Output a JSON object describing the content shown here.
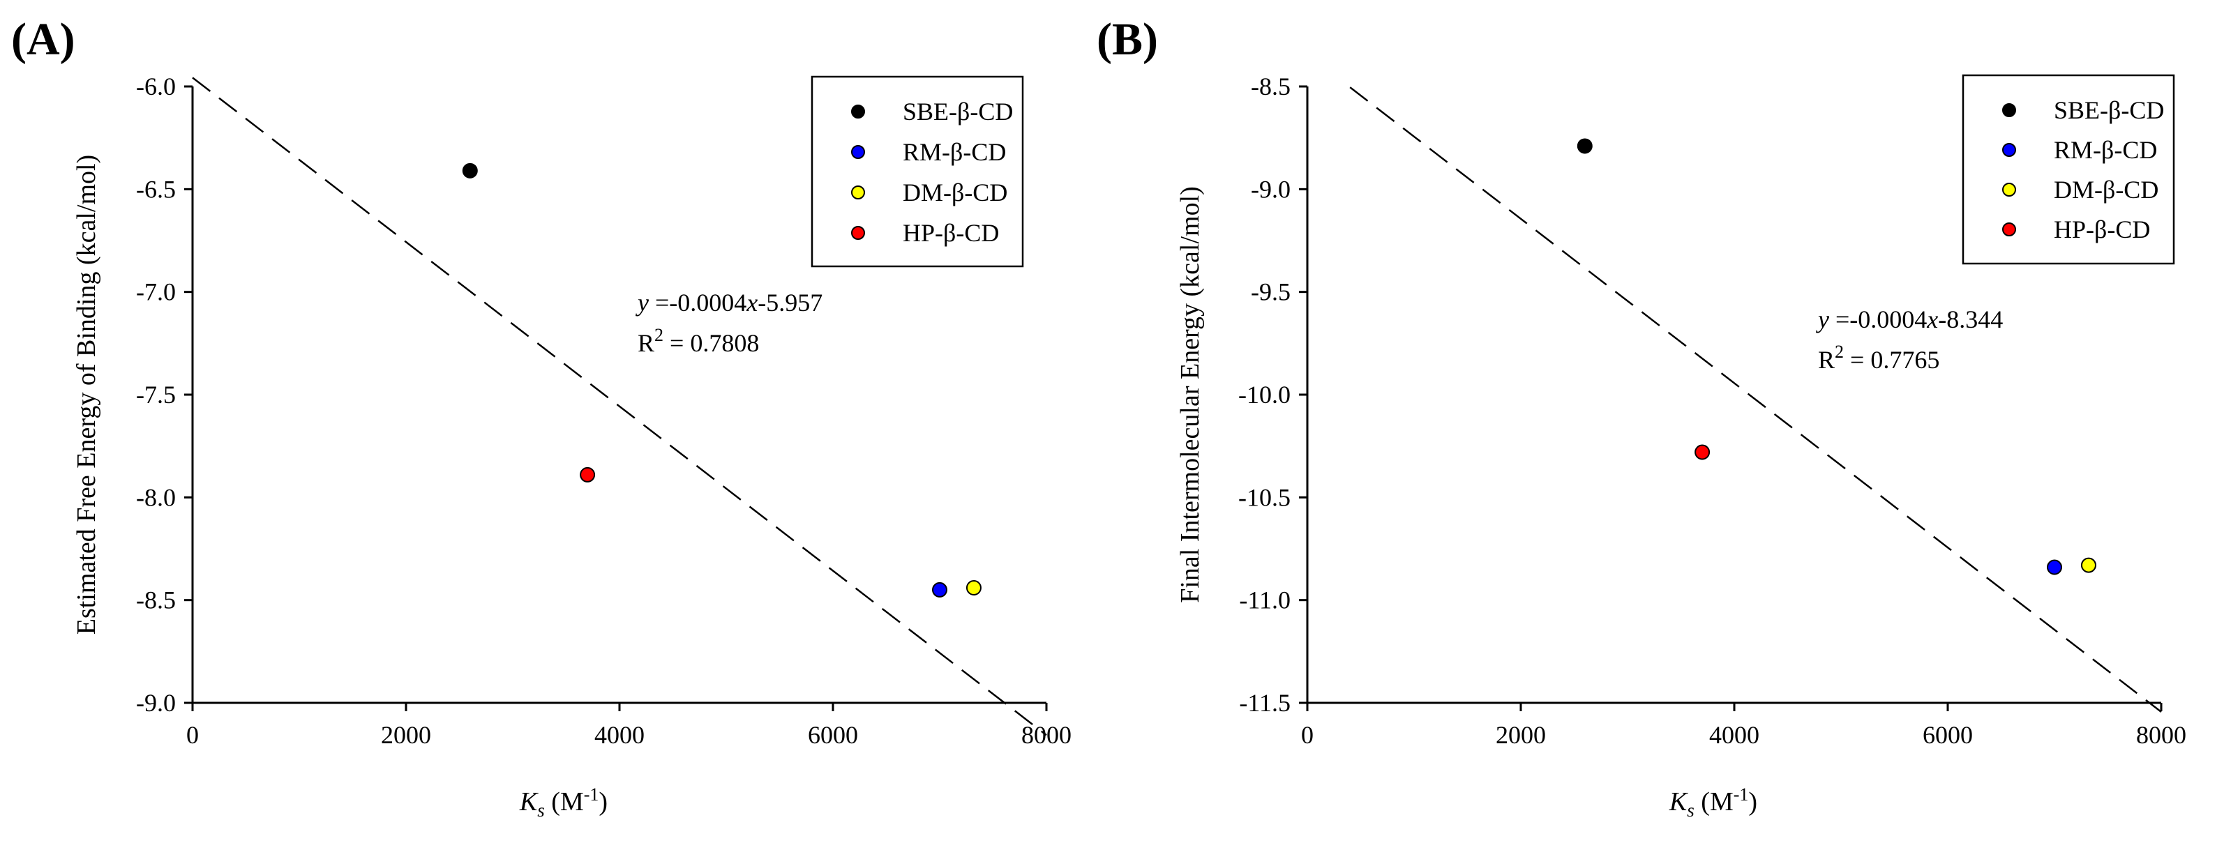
{
  "chart_data": [
    {
      "panel_label": "(A)",
      "type": "scatter",
      "xlabel": {
        "main": "K",
        "sub": "s",
        "unit_pre": " (M",
        "unit_sup": "-1",
        "unit_post": ")"
      },
      "ylabel": "Estimated Free Energy of Binding (kcal/mol)",
      "xlim": [
        0,
        8000
      ],
      "ylim": [
        -9.0,
        -6.0
      ],
      "xticks": [
        "0",
        "2000",
        "4000",
        "6000",
        "8000"
      ],
      "yticks": [
        "-6.0",
        "-6.5",
        "-7.0",
        "-7.5",
        "-8.0",
        "-8.5",
        "-9.0"
      ],
      "series": [
        {
          "name": "SBE-β-CD",
          "color": "#000000",
          "x": 2600,
          "y": -6.41
        },
        {
          "name": "RM-β-CD",
          "color": "#0000ff",
          "x": 7000,
          "y": -8.45
        },
        {
          "name": "DM-β-CD",
          "color": "#ffff00",
          "x": 7320,
          "y": -8.44
        },
        {
          "name": "HP-β-CD",
          "color": "#ff0000",
          "x": 3700,
          "y": -7.89
        }
      ],
      "fit": {
        "slope": -0.0004,
        "intercept": -5.957,
        "x_range": [
          0,
          8000
        ]
      },
      "annotation": {
        "y_var": "y",
        "eq_mid": " =-0.0004",
        "x_var": "x",
        "eq_end": "-5.957",
        "r2_pre": "R",
        "r2_sup": "2",
        "r2_post": " = 0.7808"
      },
      "legend_position": "top-right"
    },
    {
      "panel_label": "(B)",
      "type": "scatter",
      "xlabel": {
        "main": "K",
        "sub": "s",
        "unit_pre": " (M",
        "unit_sup": "-1",
        "unit_post": ")"
      },
      "ylabel": "Final Intermolecular Energy (kcal/mol)",
      "xlim": [
        0,
        8000
      ],
      "ylim": [
        -11.5,
        -8.5
      ],
      "xticks": [
        "0",
        "2000",
        "4000",
        "6000",
        "8000"
      ],
      "yticks": [
        "-8.5",
        "-9.0",
        "-9.5",
        "-10.0",
        "-10.5",
        "-11.0",
        "-11.5"
      ],
      "series": [
        {
          "name": "SBE-β-CD",
          "color": "#000000",
          "x": 2600,
          "y": -8.79
        },
        {
          "name": "RM-β-CD",
          "color": "#0000ff",
          "x": 7000,
          "y": -10.84
        },
        {
          "name": "DM-β-CD",
          "color": "#ffff00",
          "x": 7320,
          "y": -10.83
        },
        {
          "name": "HP-β-CD",
          "color": "#ff0000",
          "x": 3700,
          "y": -10.28
        }
      ],
      "fit": {
        "slope": -0.0004,
        "intercept": -8.344,
        "x_range": [
          400,
          8000
        ]
      },
      "annotation": {
        "y_var": "y",
        "eq_mid": " =-0.0004",
        "x_var": "x",
        "eq_end": "-8.344",
        "r2_pre": "R",
        "r2_sup": "2",
        "r2_post": " = 0.7765"
      },
      "legend_position": "top-right"
    }
  ]
}
